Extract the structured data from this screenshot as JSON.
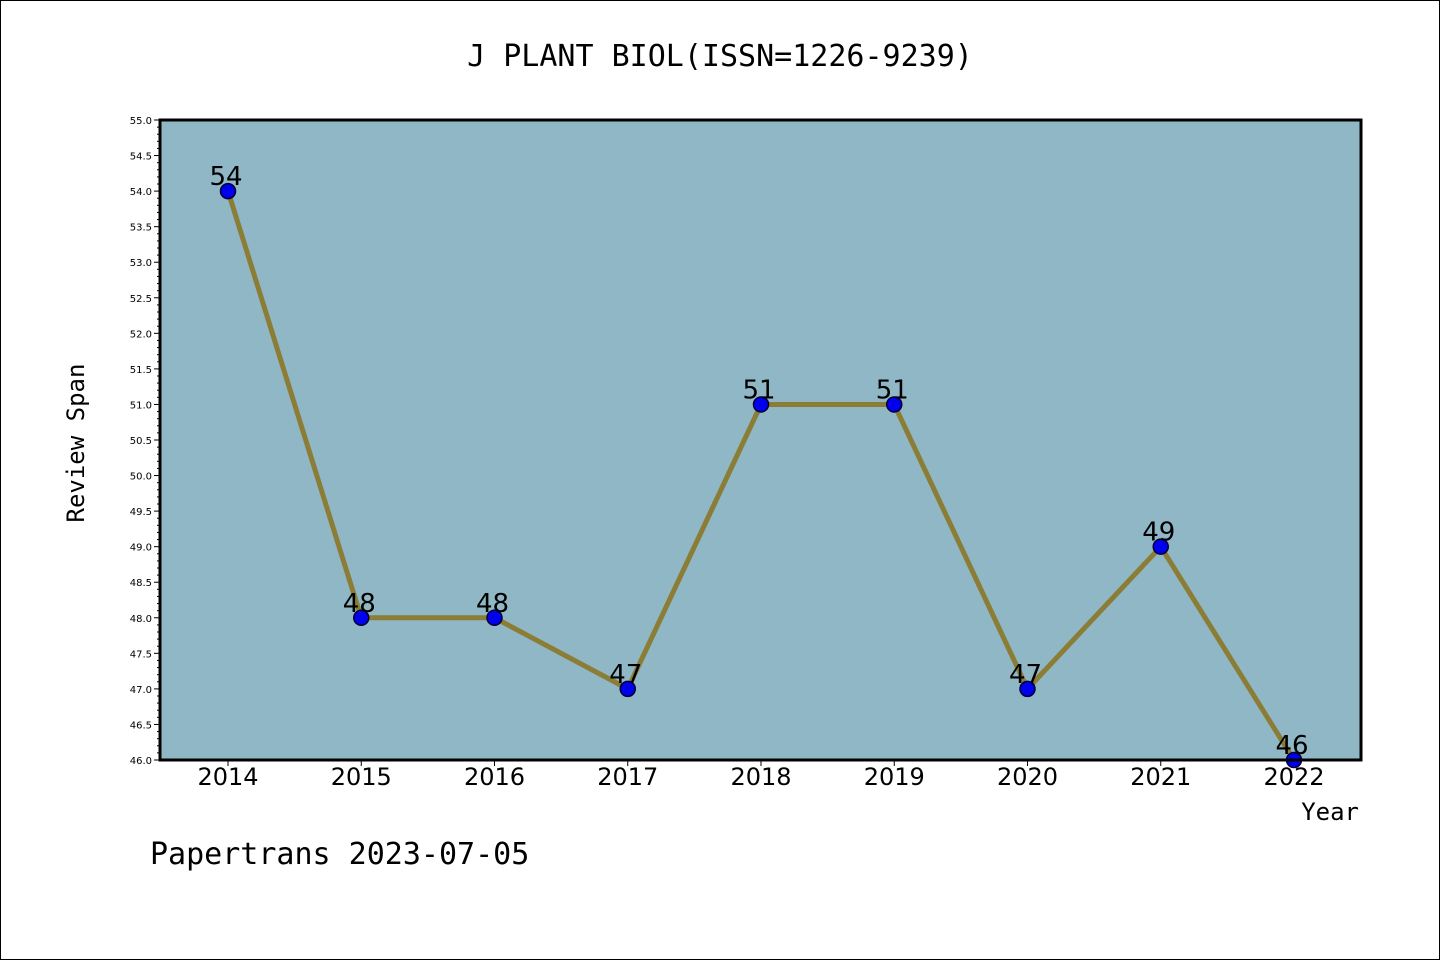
{
  "chart_data": {
    "type": "line",
    "title": "J PLANT BIOL(ISSN=1226-9239)",
    "xlabel": "Year",
    "ylabel": "Review Span",
    "footer": "Papertrans 2023-07-05",
    "x": [
      "2014",
      "2015",
      "2016",
      "2017",
      "2018",
      "2019",
      "2020",
      "2021",
      "2022"
    ],
    "series": [
      {
        "values": [
          54,
          48,
          48,
          47,
          51,
          51,
          47,
          49,
          46
        ]
      }
    ],
    "data_labels": [
      "54",
      "48",
      "48",
      "47",
      "51",
      "51",
      "47",
      "49",
      "46"
    ],
    "ylim": [
      46.0,
      55.0
    ],
    "y_ticks": [
      "46.0",
      "46.5",
      "47.0",
      "47.5",
      "48.0",
      "48.5",
      "49.0",
      "49.5",
      "50.0",
      "50.5",
      "51.0",
      "51.5",
      "52.0",
      "52.5",
      "53.0",
      "53.5",
      "54.0",
      "54.5",
      "55.0"
    ],
    "grid": false,
    "legend": "none",
    "colors": {
      "plot_background": "#8fb7c5",
      "line": "#8b7d35",
      "marker": "#0000ee",
      "marker_edge": "#000033"
    }
  }
}
